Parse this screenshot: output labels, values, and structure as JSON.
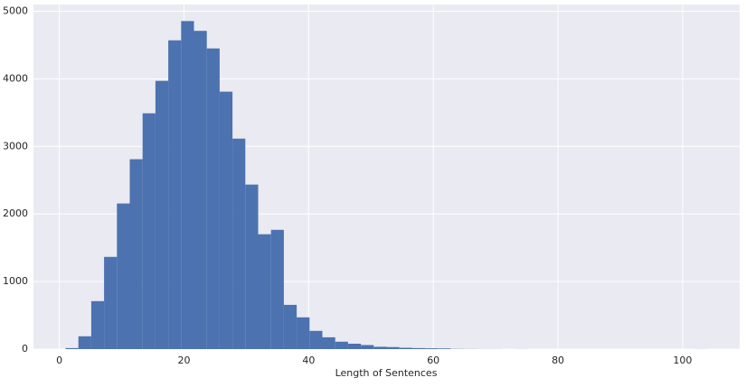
{
  "chart_data": {
    "type": "histogram",
    "xlabel": "Length of Sentences",
    "bins": [
      1,
      3.06,
      5.12,
      7.18,
      9.24,
      11.3,
      13.36,
      15.42,
      17.48,
      19.54,
      21.6,
      23.66,
      25.72,
      27.78,
      29.84,
      31.9,
      33.96,
      36.02,
      38.08,
      40.14,
      42.2,
      44.26,
      46.32,
      48.38,
      50.44,
      52.5,
      54.56,
      56.62,
      58.68,
      60.74,
      62.8,
      64.86,
      66.92,
      68.98,
      71.04,
      73.1,
      75.16,
      77.22,
      79.28,
      81.34,
      83.4,
      85.46,
      87.52,
      89.58,
      91.64,
      93.7,
      95.76,
      97.82,
      99.88,
      101.94,
      104
    ],
    "counts": [
      15,
      190,
      710,
      1365,
      2155,
      2810,
      3490,
      3970,
      4570,
      4855,
      4710,
      4450,
      3810,
      3115,
      2435,
      1700,
      1765,
      655,
      470,
      270,
      175,
      110,
      80,
      60,
      35,
      30,
      20,
      15,
      12,
      10,
      3,
      2,
      1,
      1,
      0,
      1,
      0,
      0,
      0,
      0,
      0,
      0,
      0,
      0,
      0,
      0,
      0,
      0,
      0,
      1
    ],
    "color": "#4c72b0",
    "xlim": [
      -4.15,
      109.15
    ],
    "xticks": [
      0,
      20,
      40,
      60,
      80,
      100
    ],
    "ylim": [
      0,
      5100
    ],
    "yticks": [
      0,
      1000,
      2000,
      3000,
      4000,
      5000
    ],
    "grid": true
  }
}
